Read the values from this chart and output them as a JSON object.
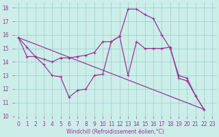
{
  "xlabel": "Windchill (Refroidissement éolien,°C)",
  "background_color": "#cceee8",
  "line_color": "#993399",
  "grid_color": "#99cccc",
  "xlim": [
    -0.5,
    23.5
  ],
  "ylim": [
    10,
    18.4
  ],
  "xticks": [
    0,
    1,
    2,
    3,
    4,
    5,
    6,
    7,
    8,
    9,
    10,
    11,
    12,
    13,
    14,
    15,
    16,
    17,
    18,
    19,
    20,
    21,
    22,
    23
  ],
  "yticks": [
    10,
    11,
    12,
    13,
    14,
    15,
    16,
    17,
    18
  ],
  "series": [
    {
      "x": [
        0,
        1,
        2,
        3,
        4,
        5,
        6,
        7,
        8,
        9,
        10,
        11,
        12,
        13,
        14,
        15,
        16,
        17,
        18,
        19,
        20,
        21,
        22
      ],
      "y": [
        15.8,
        15.1,
        14.4,
        13.8,
        13.0,
        12.9,
        11.4,
        11.9,
        12.0,
        13.0,
        13.1,
        15.5,
        15.9,
        13.0,
        15.5,
        15.0,
        15.0,
        15.0,
        15.1,
        12.8,
        12.6,
        11.5,
        10.5
      ]
    },
    {
      "x": [
        0,
        1,
        2,
        3,
        4,
        5,
        6,
        7,
        8,
        9,
        10,
        11,
        12,
        13,
        14,
        15,
        16,
        17,
        18,
        19,
        20,
        21,
        22
      ],
      "y": [
        15.8,
        14.4,
        14.4,
        14.2,
        14.0,
        14.3,
        14.3,
        14.4,
        14.5,
        14.7,
        15.5,
        15.5,
        15.9,
        17.9,
        17.9,
        17.5,
        17.2,
        16.0,
        15.0,
        13.0,
        12.8,
        11.5,
        10.5
      ]
    },
    {
      "x": [
        0,
        22
      ],
      "y": [
        15.8,
        10.5
      ]
    }
  ],
  "marker": "+",
  "markersize": 3,
  "linewidth": 0.9,
  "tick_labelsize": 5.5,
  "xlabel_fontsize": 5.5
}
